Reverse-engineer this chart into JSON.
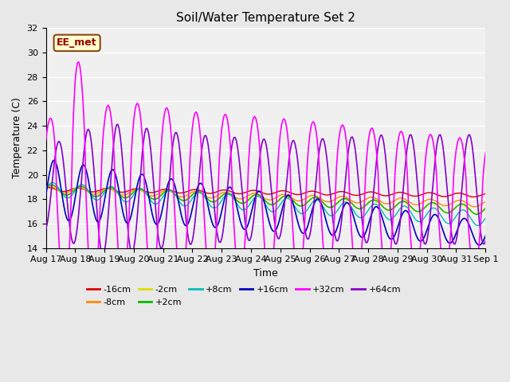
{
  "title": "Soil/Water Temperature Set 2",
  "xlabel": "Time",
  "ylabel": "Temperature (C)",
  "ylim": [
    14,
    32
  ],
  "yticks": [
    14,
    16,
    18,
    20,
    22,
    24,
    26,
    28,
    30,
    32
  ],
  "background_color": "#e8e8e8",
  "plot_bg_color": "#e8e8e8",
  "annotation_text": "EE_met",
  "annotation_bg": "#ffffcc",
  "annotation_border": "#8b4513",
  "series_colors": {
    "-16cm": "#dd0000",
    "-8cm": "#ff8800",
    "-2cm": "#dddd00",
    "+2cm": "#00bb00",
    "+8cm": "#00bbbb",
    "+16cm": "#0000bb",
    "+32cm": "#ff00ff",
    "+64cm": "#8800cc"
  },
  "base_temp": 18.8,
  "figwidth": 6.4,
  "figheight": 4.8,
  "dpi": 100
}
